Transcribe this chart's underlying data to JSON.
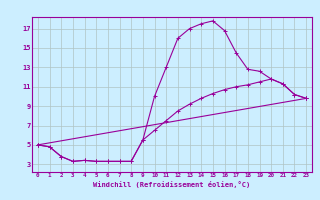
{
  "xlabel": "Windchill (Refroidissement éolien,°C)",
  "background_color": "#cceeff",
  "line_color": "#990099",
  "xlim": [
    -0.5,
    23.5
  ],
  "ylim": [
    2.2,
    18.2
  ],
  "xticks": [
    0,
    1,
    2,
    3,
    4,
    5,
    6,
    7,
    8,
    9,
    10,
    11,
    12,
    13,
    14,
    15,
    16,
    17,
    18,
    19,
    20,
    21,
    22,
    23
  ],
  "yticks": [
    3,
    5,
    7,
    9,
    11,
    13,
    15,
    17
  ],
  "series": [
    {
      "x": [
        0,
        1,
        2,
        3,
        4,
        5,
        6,
        7,
        8,
        9,
        10,
        11,
        12,
        13,
        14,
        15,
        16,
        17,
        18,
        19,
        20,
        21,
        22,
        23
      ],
      "y": [
        5.0,
        4.8,
        3.8,
        3.3,
        3.4,
        3.3,
        3.3,
        3.3,
        3.3,
        5.5,
        10.0,
        13.0,
        16.0,
        17.0,
        17.5,
        17.8,
        16.8,
        14.5,
        12.8,
        12.6,
        11.8,
        11.3,
        10.2,
        9.8
      ]
    },
    {
      "x": [
        0,
        1,
        2,
        3,
        4,
        5,
        6,
        7,
        8,
        9,
        10,
        11,
        12,
        13,
        14,
        15,
        16,
        17,
        18,
        19,
        20,
        21,
        22,
        23
      ],
      "y": [
        5.0,
        4.8,
        3.8,
        3.3,
        3.4,
        3.3,
        3.3,
        3.3,
        3.3,
        5.5,
        6.5,
        7.5,
        8.5,
        9.2,
        9.8,
        10.3,
        10.7,
        11.0,
        11.2,
        11.5,
        11.8,
        11.3,
        10.2,
        9.8
      ]
    },
    {
      "x": [
        0,
        23
      ],
      "y": [
        5.0,
        9.8
      ]
    }
  ],
  "grid_color": "#b0c4c4",
  "marker": "+"
}
